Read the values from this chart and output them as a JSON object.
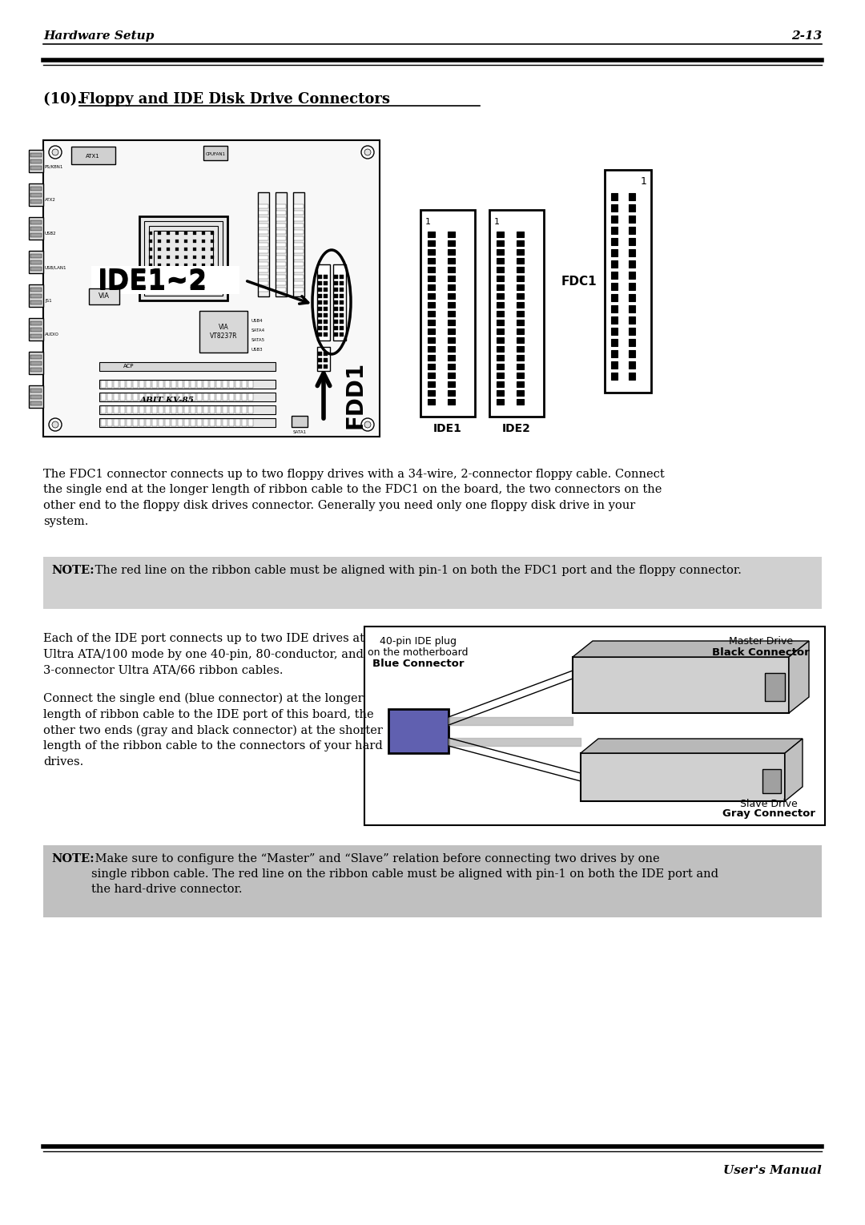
{
  "page_title_left": "Hardware Setup",
  "page_title_right": "2-13",
  "footer_right": "User's Manual",
  "section_prefix": "(10).  ",
  "section_title_underlined": "Floppy and IDE Disk Drive Connectors",
  "body_text1": "The FDC1 connector connects up to two floppy drives with a 34-wire, 2-connector floppy cable. Connect the single end at the longer length of ribbon cable to the FDC1 on the board, the two connectors on the other end to the floppy disk drives connector. Generally you need only one floppy disk drive in your system.",
  "note1_bold": "NOTE:",
  "note1_text": " The red line on the ribbon cable must be aligned with pin-1 on both the FDC1 port and the floppy connector.",
  "body_text2a": "Each of the IDE port connects up to two IDE drives at\nUltra ATA/100 mode by one 40-pin, 80-conductor, and\n3-connector Ultra ATA/66 ribbon cables.",
  "body_text2b": "Connect the single end (blue connector) at the longer\nlength of ribbon cable to the IDE port of this board, the\nother two ends (gray and black connector) at the shorter\nlength of the ribbon cable to the connectors of your hard\ndrives.",
  "label_ide1": "IDE1",
  "label_ide2": "IDE2",
  "label_fdc1": "FDC1",
  "label_ide12": "IDE1~2",
  "label_fdd1": "FDD1",
  "label_master": "Master Drive",
  "label_master_conn": "Black Connector",
  "label_40pin_line1": "40-pin IDE plug",
  "label_40pin_line2": "on the motherboard",
  "label_blue": "Blue Connector",
  "label_slave": "Slave Drive",
  "label_slave_conn": "Gray Connector",
  "note2_bold": "NOTE:",
  "note2_text": " Make sure to configure the “Master” and “Slave” relation before connecting two drives by one single ribbon cable. The red line on the ribbon cable must be aligned with pin-1 on both the IDE port and the hard-drive connector.",
  "bg_color": "#ffffff",
  "note1_bg": "#d0d0d0",
  "note2_bg": "#c0c0c0"
}
